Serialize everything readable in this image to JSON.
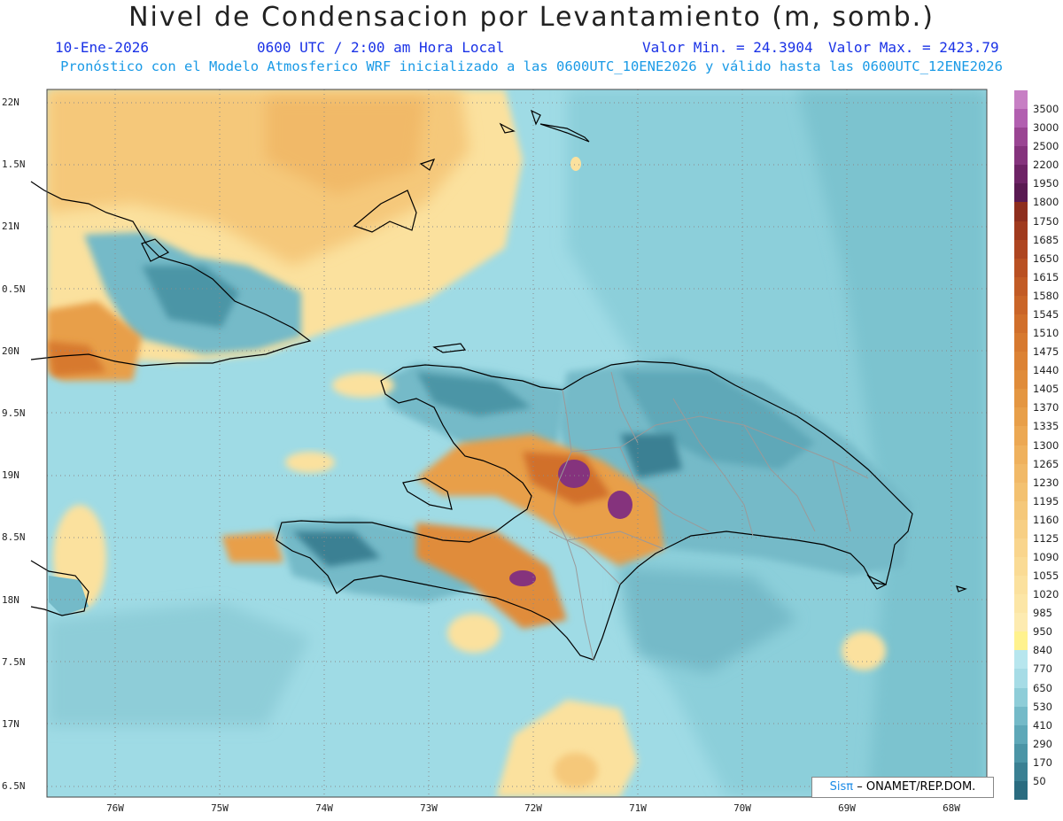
{
  "header": {
    "title": "Nivel de Condensacion por Levantamiento (m, somb.)",
    "date": "10-Ene-2026",
    "time": "0600 UTC / 2:00 am Hora Local",
    "min_value": "Valor Min. = 24.3904",
    "max_value": "Valor Max. = 2423.79",
    "forecast_note": "Pronóstico con el Modelo Atmosferico WRF inicializado a las 0600UTC_10ENE2026 y válido hasta las  0600UTC_12ENE2026"
  },
  "axes": {
    "lat_labels": [
      "22N",
      "1.5N",
      "21N",
      "0.5N",
      "20N",
      "9.5N",
      "19N",
      "8.5N",
      "18N",
      "7.5N",
      "17N",
      "6.5N"
    ],
    "lon_labels": [
      "76W",
      "75W",
      "74W",
      "73W",
      "72W",
      "71W",
      "70W",
      "69W",
      "68W"
    ]
  },
  "colorbar": {
    "labels": [
      "3500",
      "3000",
      "2500",
      "2200",
      "1950",
      "1800",
      "1750",
      "1685",
      "1650",
      "1615",
      "1580",
      "1545",
      "1510",
      "1475",
      "1440",
      "1405",
      "1370",
      "1335",
      "1300",
      "1265",
      "1230",
      "1195",
      "1160",
      "1125",
      "1090",
      "1055",
      "1020",
      "985",
      "950",
      "840",
      "770",
      "650",
      "530",
      "410",
      "290",
      "170",
      "50"
    ],
    "colors": [
      "#c77fc4",
      "#b25fb0",
      "#9a4593",
      "#85337d",
      "#6e2366",
      "#5a1a52",
      "#8e2e1e",
      "#a03a1e",
      "#ae4520",
      "#b95022",
      "#c25b25",
      "#ca6528",
      "#d16f2b",
      "#d7792f",
      "#dc8234",
      "#e08c3a",
      "#e49641",
      "#e89f49",
      "#eca853",
      "#efb15d",
      "#f1b967",
      "#f3c170",
      "#f5c87a",
      "#f7cf84",
      "#f9d58d",
      "#fadb95",
      "#fbe19e",
      "#fce6a6",
      "#fdebb0",
      "#fff28e",
      "#b7e6ee",
      "#a6dce6",
      "#8ecdd8",
      "#74bac8",
      "#5ea8b8",
      "#4b95a6",
      "#3a8093",
      "#2a6c80"
    ]
  },
  "credit": {
    "sis": "Sisπ",
    "org": "– ONAMET/REP.DOM."
  }
}
